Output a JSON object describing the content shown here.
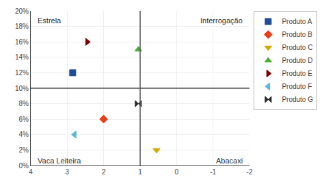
{
  "chart_data": {
    "type": "scatter",
    "xlim": [
      4,
      -2
    ],
    "xticks": [
      4,
      3,
      2,
      1,
      0,
      -1,
      -2
    ],
    "ylim": [
      0,
      0.2
    ],
    "yticks": [
      {
        "value": 0.0,
        "label": "0%"
      },
      {
        "value": 0.02,
        "label": "2%"
      },
      {
        "value": 0.04,
        "label": "4%"
      },
      {
        "value": 0.06,
        "label": "6%"
      },
      {
        "value": 0.08,
        "label": "8%"
      },
      {
        "value": 0.1,
        "label": "10%"
      },
      {
        "value": 0.12,
        "label": "12%"
      },
      {
        "value": 0.14,
        "label": "14%"
      },
      {
        "value": 0.16,
        "label": "16%"
      },
      {
        "value": 0.18,
        "label": "18%"
      },
      {
        "value": 0.2,
        "label": "20%"
      }
    ],
    "grid": true,
    "legend": "right",
    "reference_lines": [
      {
        "axis": "x",
        "value": 1
      },
      {
        "axis": "y",
        "value": 0.1
      }
    ],
    "annotations": [
      {
        "text": "Estrela",
        "x": 3.85,
        "y": 0.188
      },
      {
        "text": "Interrogação",
        "x": -1.85,
        "y": 0.188
      },
      {
        "text": "Vaca Leiteira",
        "x": 3.85,
        "y": 0.006
      },
      {
        "text": "Abacaxi",
        "x": -1.85,
        "y": 0.006
      }
    ],
    "series": [
      {
        "name": "Produto A",
        "color": "#1F4E96",
        "marker": "square",
        "x": [
          2.85
        ],
        "values": [
          0.12
        ]
      },
      {
        "name": "Produto B",
        "color": "#E8401A",
        "marker": "diamond",
        "x": [
          2.0
        ],
        "values": [
          0.06
        ]
      },
      {
        "name": "Produto C",
        "color": "#D4A800",
        "marker": "triangle-down",
        "x": [
          0.55
        ],
        "values": [
          0.02
        ]
      },
      {
        "name": "Produto D",
        "color": "#4BAA3A",
        "marker": "triangle-up",
        "x": [
          1.05
        ],
        "values": [
          0.15
        ]
      },
      {
        "name": "Produto E",
        "color": "#7B0000",
        "marker": "triangle-right",
        "x": [
          2.45
        ],
        "values": [
          0.16
        ]
      },
      {
        "name": "Produto F",
        "color": "#5BB8D4",
        "marker": "triangle-left",
        "x": [
          2.8
        ],
        "values": [
          0.04
        ]
      },
      {
        "name": "Produto G",
        "color": "#2A2A2A",
        "marker": "bowtie",
        "x": [
          1.05
        ],
        "values": [
          0.08
        ]
      }
    ]
  }
}
